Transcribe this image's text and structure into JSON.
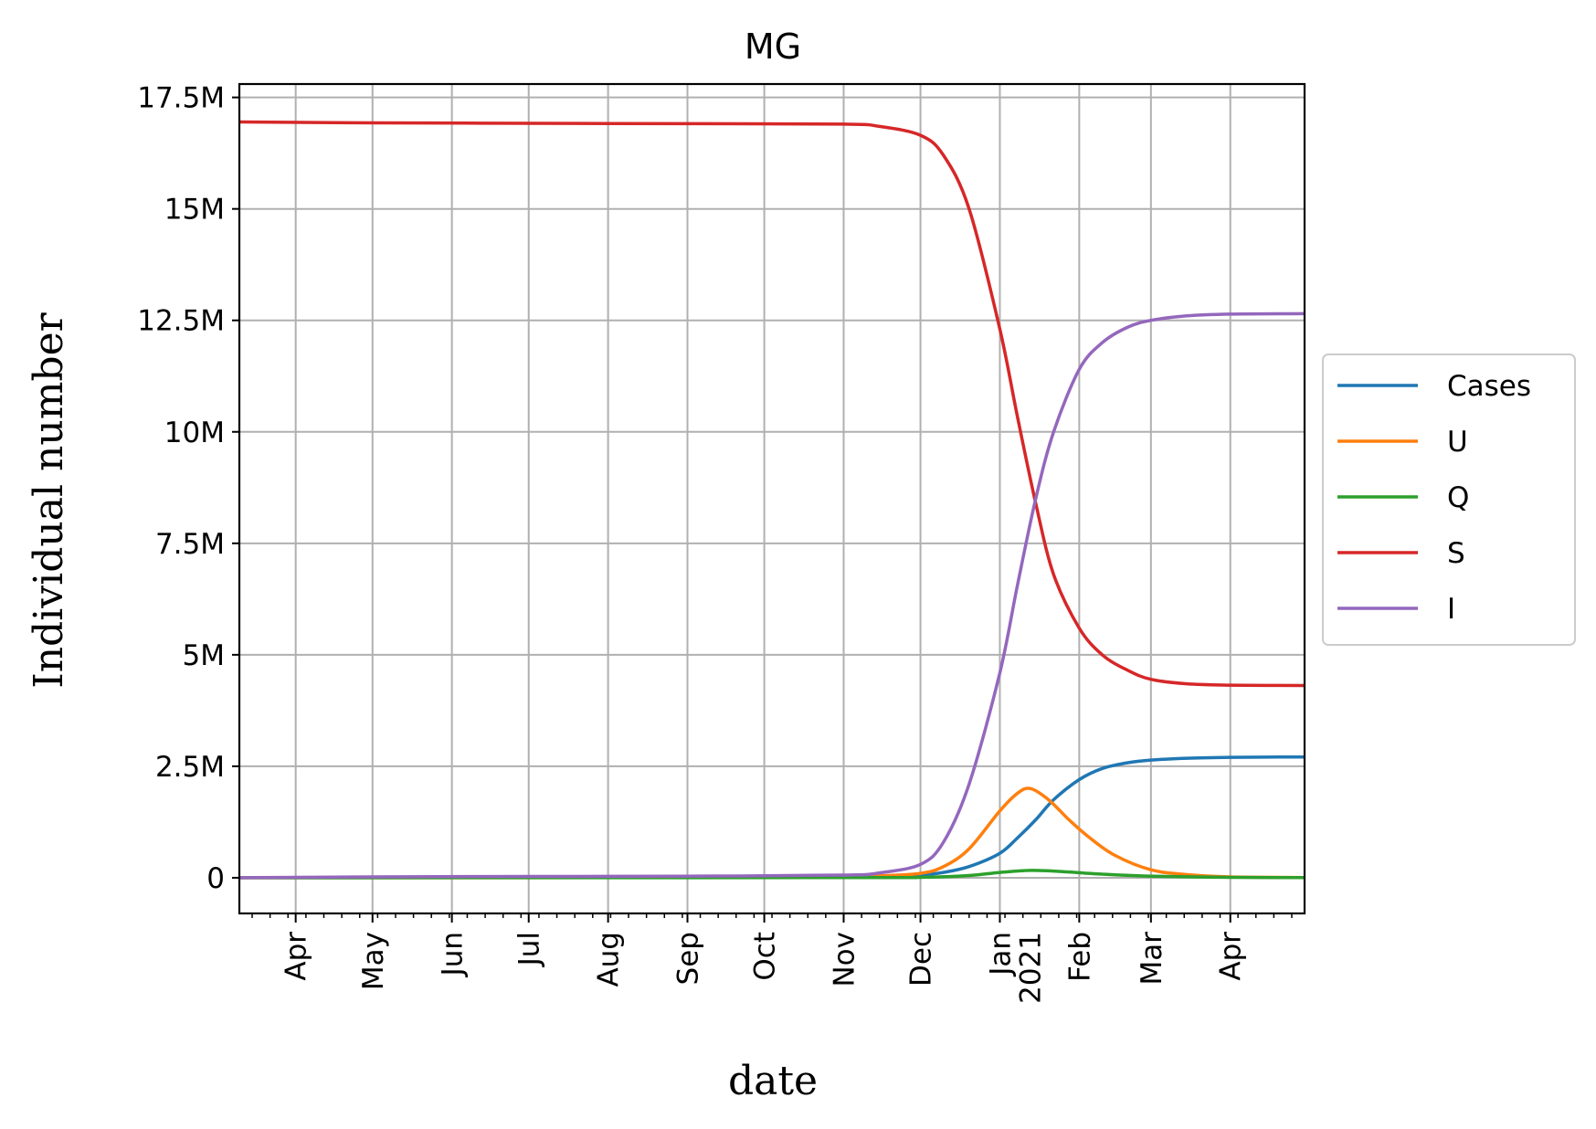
{
  "chart_data": {
    "type": "line",
    "title": "MG",
    "xlabel": "date",
    "ylabel": "Individual number",
    "x_domain": [
      "2020-03-10",
      "2021-04-30"
    ],
    "ylim": [
      -800000,
      17800000
    ],
    "grid": true,
    "legend_position": "right",
    "y_ticks": [
      {
        "value": 0,
        "label": "0"
      },
      {
        "value": 2500000,
        "label": "2.5M"
      },
      {
        "value": 5000000,
        "label": "5M"
      },
      {
        "value": 7500000,
        "label": "7.5M"
      },
      {
        "value": 10000000,
        "label": "10M"
      },
      {
        "value": 12500000,
        "label": "12.5M"
      },
      {
        "value": 15000000,
        "label": "15M"
      },
      {
        "value": 17500000,
        "label": "17.5M"
      }
    ],
    "x_ticks": [
      {
        "date": "2020-04-01",
        "label": "Apr"
      },
      {
        "date": "2020-05-01",
        "label": "May"
      },
      {
        "date": "2020-06-01",
        "label": "Jun"
      },
      {
        "date": "2020-07-01",
        "label": "Jul"
      },
      {
        "date": "2020-08-01",
        "label": "Aug"
      },
      {
        "date": "2020-09-01",
        "label": "Sep"
      },
      {
        "date": "2020-10-01",
        "label": "Oct"
      },
      {
        "date": "2020-11-01",
        "label": "Nov"
      },
      {
        "date": "2020-12-01",
        "label": "Dec"
      },
      {
        "date": "2021-01-01",
        "label": "Jan",
        "label2": "2021"
      },
      {
        "date": "2021-02-01",
        "label": "Feb"
      },
      {
        "date": "2021-03-01",
        "label": "Mar"
      },
      {
        "date": "2021-04-01",
        "label": "Apr"
      }
    ],
    "series": [
      {
        "name": "Cases",
        "color": "#1f77b4",
        "x": [
          "2020-03-10",
          "2020-10-01",
          "2020-11-01",
          "2020-11-15",
          "2020-12-01",
          "2020-12-10",
          "2020-12-20",
          "2021-01-01",
          "2021-01-08",
          "2021-01-15",
          "2021-01-22",
          "2021-02-01",
          "2021-02-10",
          "2021-02-20",
          "2021-03-01",
          "2021-03-15",
          "2021-04-01",
          "2021-04-30"
        ],
        "values": [
          0,
          10000,
          20000,
          30000,
          60000,
          120000,
          250000,
          550000,
          900000,
          1300000,
          1750000,
          2200000,
          2450000,
          2580000,
          2640000,
          2680000,
          2700000,
          2710000
        ]
      },
      {
        "name": "U",
        "color": "#ff7f0e",
        "x": [
          "2020-03-10",
          "2020-10-01",
          "2020-11-01",
          "2020-11-15",
          "2020-12-01",
          "2020-12-10",
          "2020-12-20",
          "2021-01-01",
          "2021-01-08",
          "2021-01-13",
          "2021-01-20",
          "2021-01-28",
          "2021-02-05",
          "2021-02-15",
          "2021-03-01",
          "2021-03-15",
          "2021-04-01",
          "2021-04-30"
        ],
        "values": [
          0,
          5000,
          15000,
          40000,
          100000,
          250000,
          650000,
          1500000,
          1900000,
          2000000,
          1750000,
          1300000,
          900000,
          500000,
          180000,
          70000,
          20000,
          5000
        ]
      },
      {
        "name": "Q",
        "color": "#2ca02c",
        "x": [
          "2020-03-10",
          "2020-11-01",
          "2020-12-01",
          "2020-12-20",
          "2021-01-01",
          "2021-01-13",
          "2021-01-25",
          "2021-02-10",
          "2021-03-01",
          "2021-04-01",
          "2021-04-30"
        ],
        "values": [
          0,
          2000,
          10000,
          50000,
          120000,
          165000,
          140000,
          80000,
          35000,
          10000,
          3000
        ]
      },
      {
        "name": "S",
        "color": "#d62728",
        "x": [
          "2020-03-10",
          "2020-05-01",
          "2020-07-01",
          "2020-09-01",
          "2020-11-01",
          "2020-11-15",
          "2020-12-01",
          "2020-12-10",
          "2020-12-20",
          "2021-01-01",
          "2021-01-08",
          "2021-01-15",
          "2021-01-22",
          "2021-02-01",
          "2021-02-10",
          "2021-02-20",
          "2021-03-01",
          "2021-03-15",
          "2021-04-01",
          "2021-04-30"
        ],
        "values": [
          16950000,
          16930000,
          16920000,
          16910000,
          16900000,
          16850000,
          16650000,
          16200000,
          15000000,
          12300000,
          10300000,
          8400000,
          6800000,
          5600000,
          5000000,
          4650000,
          4450000,
          4350000,
          4320000,
          4310000
        ]
      },
      {
        "name": "I",
        "color": "#9467bd",
        "x": [
          "2020-03-10",
          "2020-05-01",
          "2020-07-01",
          "2020-09-01",
          "2020-11-01",
          "2020-11-15",
          "2020-12-01",
          "2020-12-10",
          "2020-12-20",
          "2021-01-01",
          "2021-01-08",
          "2021-01-15",
          "2021-01-22",
          "2021-02-01",
          "2021-02-10",
          "2021-02-20",
          "2021-03-01",
          "2021-03-15",
          "2021-04-01",
          "2021-04-30"
        ],
        "values": [
          0,
          20000,
          30000,
          35000,
          60000,
          110000,
          300000,
          800000,
          2100000,
          4600000,
          6600000,
          8500000,
          10000000,
          11400000,
          12000000,
          12350000,
          12500000,
          12600000,
          12640000,
          12650000
        ]
      }
    ]
  }
}
